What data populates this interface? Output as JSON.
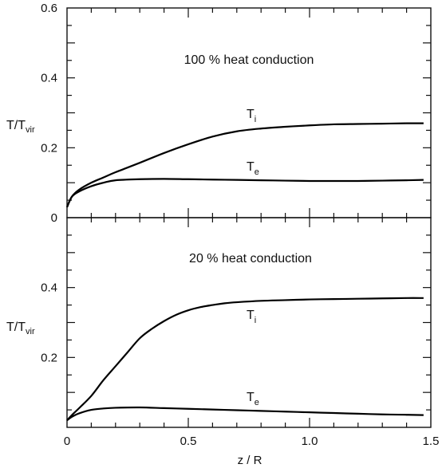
{
  "chart_data": [
    {
      "type": "line",
      "annotation": "100 % heat conduction",
      "ylabel": {
        "main": "T/T",
        "sub": "vir"
      },
      "xlim": [
        0,
        1.5
      ],
      "ylim": [
        0,
        0.6
      ],
      "y_ticks_labeled": [
        {
          "value": 0,
          "label": "0"
        },
        {
          "value": 0.2,
          "label": "0.2"
        },
        {
          "value": 0.4,
          "label": "0.4"
        },
        {
          "value": 0.6,
          "label": "0.6"
        }
      ],
      "grid": false,
      "series": [
        {
          "name": {
            "main": "T",
            "sub": "i"
          },
          "label_pos": {
            "x": 0.74,
            "y": 0.285
          },
          "x": [
            0,
            0.02,
            0.05,
            0.1,
            0.15,
            0.2,
            0.3,
            0.4,
            0.5,
            0.6,
            0.7,
            0.8,
            0.9,
            1.0,
            1.1,
            1.2,
            1.3,
            1.4,
            1.47
          ],
          "y": [
            0.03,
            0.06,
            0.08,
            0.1,
            0.115,
            0.13,
            0.157,
            0.185,
            0.21,
            0.232,
            0.247,
            0.255,
            0.26,
            0.264,
            0.267,
            0.268,
            0.269,
            0.27,
            0.27
          ]
        },
        {
          "name": {
            "main": "T",
            "sub": "e"
          },
          "label_pos": {
            "x": 0.74,
            "y": 0.135
          },
          "x": [
            0,
            0.02,
            0.05,
            0.1,
            0.15,
            0.2,
            0.3,
            0.4,
            0.5,
            0.6,
            0.7,
            0.8,
            0.9,
            1.0,
            1.1,
            1.2,
            1.3,
            1.4,
            1.47
          ],
          "y": [
            0.03,
            0.06,
            0.075,
            0.09,
            0.1,
            0.107,
            0.11,
            0.111,
            0.11,
            0.109,
            0.108,
            0.107,
            0.106,
            0.105,
            0.105,
            0.105,
            0.106,
            0.107,
            0.108
          ]
        }
      ]
    },
    {
      "type": "line",
      "annotation": "20 % heat conduction",
      "ylabel": {
        "main": "T/T",
        "sub": "vir"
      },
      "xlabel": "z / R",
      "xlim": [
        0,
        1.5
      ],
      "ylim": [
        0,
        0.6
      ],
      "x_ticks_labeled": [
        {
          "value": 0,
          "label": "0"
        },
        {
          "value": 0.5,
          "label": "0.5"
        },
        {
          "value": 1.0,
          "label": "1.0"
        },
        {
          "value": 1.5,
          "label": "1.5"
        }
      ],
      "y_ticks_labeled": [
        {
          "value": 0.2,
          "label": "0.2"
        },
        {
          "value": 0.4,
          "label": "0.4"
        }
      ],
      "grid": false,
      "series": [
        {
          "name": {
            "main": "T",
            "sub": "i"
          },
          "label_pos": {
            "x": 0.74,
            "y": 0.31
          },
          "x": [
            0,
            0.02,
            0.05,
            0.1,
            0.15,
            0.2,
            0.25,
            0.3,
            0.35,
            0.4,
            0.45,
            0.5,
            0.55,
            0.6,
            0.65,
            0.7,
            0.8,
            0.9,
            1.0,
            1.1,
            1.2,
            1.3,
            1.4,
            1.47
          ],
          "y": [
            0.02,
            0.035,
            0.055,
            0.09,
            0.135,
            0.175,
            0.215,
            0.255,
            0.282,
            0.304,
            0.322,
            0.335,
            0.344,
            0.35,
            0.355,
            0.358,
            0.362,
            0.364,
            0.366,
            0.367,
            0.368,
            0.369,
            0.37,
            0.37
          ]
        },
        {
          "name": {
            "main": "T",
            "sub": "e"
          },
          "label_pos": {
            "x": 0.74,
            "y": 0.075
          },
          "x": [
            0,
            0.02,
            0.05,
            0.1,
            0.15,
            0.2,
            0.3,
            0.4,
            0.5,
            0.6,
            0.7,
            0.8,
            0.9,
            1.0,
            1.1,
            1.2,
            1.3,
            1.4,
            1.47
          ],
          "y": [
            0.02,
            0.03,
            0.04,
            0.05,
            0.054,
            0.056,
            0.057,
            0.055,
            0.053,
            0.051,
            0.049,
            0.047,
            0.045,
            0.043,
            0.041,
            0.039,
            0.037,
            0.036,
            0.035
          ]
        }
      ]
    }
  ]
}
